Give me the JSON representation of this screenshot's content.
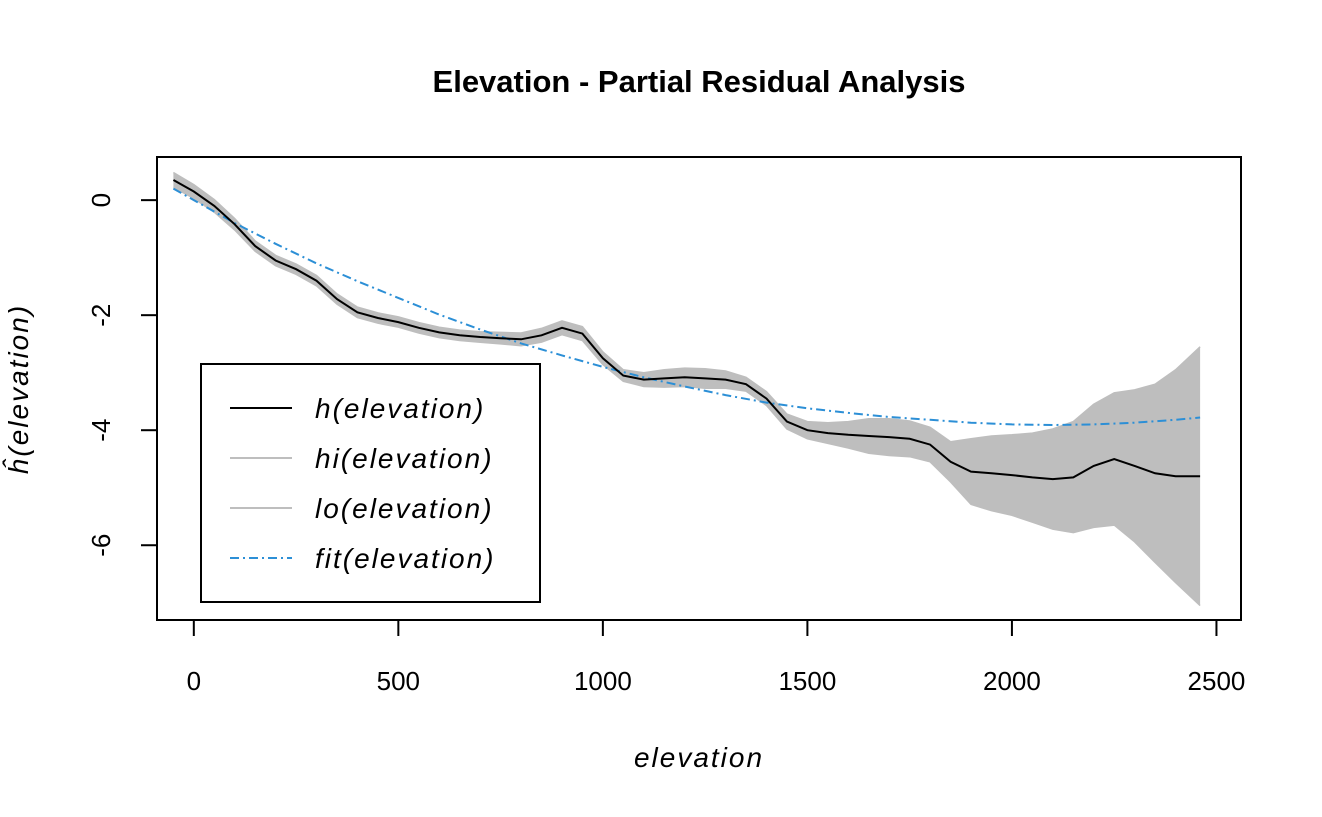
{
  "chart_data": {
    "type": "line",
    "title": "Elevation - Partial Residual Analysis",
    "xlabel": "elevation",
    "ylabel": "ĥ(elevation)",
    "xlim": [
      -90,
      2560
    ],
    "ylim": [
      -7.3,
      0.75
    ],
    "x_ticks": [
      0,
      500,
      1000,
      1500,
      2000,
      2500
    ],
    "x_tick_labels": [
      "0",
      "500",
      "1000",
      "1500",
      "2000",
      "2500"
    ],
    "y_ticks": [
      0,
      -2,
      -4,
      -6
    ],
    "y_tick_labels": [
      "0",
      "-2",
      "-4",
      "-6"
    ],
    "grid": false,
    "legend_position": "bottom-left",
    "colors": {
      "h": "#000000",
      "band": "#bebebe",
      "fit": "#2c8fd6"
    },
    "series": [
      {
        "name": "h(elevation)",
        "name_main": "h",
        "name_arg": "(elevation)",
        "color": "#000000",
        "style": "solid",
        "x": [
          -50,
          0,
          50,
          100,
          150,
          200,
          250,
          300,
          350,
          400,
          450,
          500,
          550,
          600,
          650,
          700,
          750,
          800,
          850,
          900,
          950,
          1000,
          1050,
          1100,
          1150,
          1200,
          1250,
          1300,
          1350,
          1400,
          1450,
          1500,
          1550,
          1600,
          1650,
          1700,
          1750,
          1800,
          1850,
          1900,
          1950,
          2000,
          2050,
          2100,
          2150,
          2200,
          2250,
          2300,
          2350,
          2400,
          2460
        ],
        "y": [
          0.35,
          0.15,
          -0.1,
          -0.42,
          -0.8,
          -1.05,
          -1.2,
          -1.4,
          -1.72,
          -1.95,
          -2.05,
          -2.12,
          -2.22,
          -2.3,
          -2.35,
          -2.38,
          -2.4,
          -2.42,
          -2.35,
          -2.22,
          -2.32,
          -2.75,
          -3.05,
          -3.12,
          -3.1,
          -3.08,
          -3.1,
          -3.12,
          -3.2,
          -3.45,
          -3.85,
          -4.0,
          -4.05,
          -4.08,
          -4.1,
          -4.12,
          -4.15,
          -4.25,
          -4.55,
          -4.72,
          -4.75,
          -4.78,
          -4.82,
          -4.85,
          -4.82,
          -4.62,
          -4.5,
          -4.62,
          -4.75,
          -4.8,
          -4.8
        ]
      },
      {
        "name": "hi(elevation)",
        "name_main": "hi",
        "name_arg": "(elevation)",
        "color": "#bebebe",
        "style": "solid",
        "x": [
          -50,
          0,
          50,
          100,
          150,
          200,
          250,
          300,
          350,
          400,
          450,
          500,
          550,
          600,
          650,
          700,
          750,
          800,
          850,
          900,
          950,
          1000,
          1050,
          1100,
          1150,
          1200,
          1250,
          1300,
          1350,
          1400,
          1450,
          1500,
          1550,
          1600,
          1650,
          1700,
          1750,
          1800,
          1850,
          1900,
          1950,
          2000,
          2050,
          2100,
          2150,
          2200,
          2250,
          2300,
          2350,
          2400,
          2460
        ],
        "y": [
          0.48,
          0.27,
          0.01,
          -0.32,
          -0.71,
          -0.96,
          -1.11,
          -1.31,
          -1.63,
          -1.86,
          -1.96,
          -2.03,
          -2.13,
          -2.21,
          -2.26,
          -2.29,
          -2.3,
          -2.31,
          -2.23,
          -2.1,
          -2.2,
          -2.64,
          -2.95,
          -3.0,
          -2.95,
          -2.92,
          -2.93,
          -2.97,
          -3.08,
          -3.33,
          -3.72,
          -3.85,
          -3.87,
          -3.85,
          -3.8,
          -3.8,
          -3.84,
          -3.95,
          -4.2,
          -4.15,
          -4.1,
          -4.08,
          -4.05,
          -3.98,
          -3.85,
          -3.55,
          -3.35,
          -3.3,
          -3.2,
          -2.95,
          -2.55
        ]
      },
      {
        "name": "lo(elevation)",
        "name_main": "lo",
        "name_arg": "(elevation)",
        "color": "#bebebe",
        "style": "solid",
        "x": [
          -50,
          0,
          50,
          100,
          150,
          200,
          250,
          300,
          350,
          400,
          450,
          500,
          550,
          600,
          650,
          700,
          750,
          800,
          850,
          900,
          950,
          1000,
          1050,
          1100,
          1150,
          1200,
          1250,
          1300,
          1350,
          1400,
          1450,
          1500,
          1550,
          1600,
          1650,
          1700,
          1750,
          1800,
          1850,
          1900,
          1950,
          2000,
          2050,
          2100,
          2150,
          2200,
          2250,
          2300,
          2350,
          2400,
          2460
        ],
        "y": [
          0.22,
          0.03,
          -0.21,
          -0.52,
          -0.89,
          -1.14,
          -1.29,
          -1.49,
          -1.81,
          -2.04,
          -2.14,
          -2.21,
          -2.31,
          -2.39,
          -2.44,
          -2.47,
          -2.5,
          -2.53,
          -2.47,
          -2.34,
          -2.44,
          -2.86,
          -3.15,
          -3.24,
          -3.25,
          -3.24,
          -3.27,
          -3.27,
          -3.32,
          -3.57,
          -3.98,
          -4.15,
          -4.23,
          -4.31,
          -4.4,
          -4.44,
          -4.46,
          -4.55,
          -4.9,
          -5.29,
          -5.4,
          -5.48,
          -5.6,
          -5.72,
          -5.78,
          -5.69,
          -5.65,
          -5.94,
          -6.3,
          -6.65,
          -7.05
        ]
      },
      {
        "name": "fit(elevation)",
        "name_main": "fit",
        "name_arg": "(elevation)",
        "color": "#2c8fd6",
        "style": "dotdash",
        "x": [
          -50,
          0,
          100,
          200,
          300,
          400,
          500,
          600,
          700,
          800,
          900,
          1000,
          1100,
          1200,
          1300,
          1400,
          1500,
          1600,
          1700,
          1800,
          1900,
          2000,
          2100,
          2200,
          2300,
          2400,
          2460
        ],
        "y": [
          0.2,
          0.0,
          -0.4,
          -0.76,
          -1.1,
          -1.41,
          -1.7,
          -1.99,
          -2.25,
          -2.49,
          -2.7,
          -2.9,
          -3.08,
          -3.24,
          -3.39,
          -3.52,
          -3.62,
          -3.7,
          -3.77,
          -3.82,
          -3.87,
          -3.9,
          -3.91,
          -3.9,
          -3.87,
          -3.82,
          -3.78
        ]
      }
    ]
  }
}
